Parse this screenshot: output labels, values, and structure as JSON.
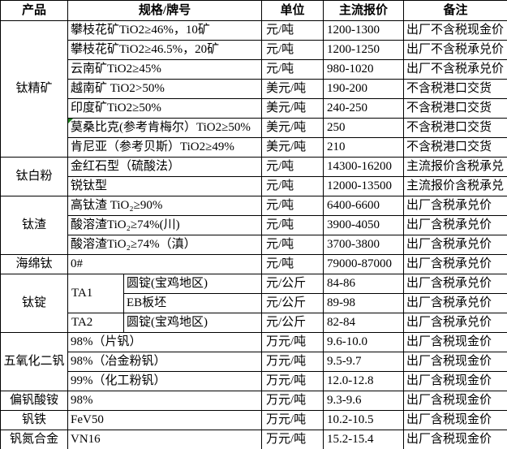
{
  "colors": {
    "border": "#000000",
    "background": "#ffffff",
    "text": "#000000",
    "marker_green": "#1e7e1e"
  },
  "table": {
    "headers": [
      {
        "id": "product",
        "t": "产品"
      },
      {
        "id": "spec",
        "t": "规格/牌号",
        "cs": 2
      },
      {
        "id": "unit",
        "t": "单位"
      },
      {
        "id": "price",
        "t": "主流报价"
      },
      {
        "id": "note",
        "t": "备注"
      }
    ],
    "rows": [
      [
        {
          "kind": "product",
          "t": "钛精矿",
          "rs": 7
        },
        {
          "kind": "spec",
          "t": "攀枝花矿TiO2≥46%，10矿",
          "cs": 2
        },
        {
          "kind": "unit",
          "t": "元/吨"
        },
        {
          "kind": "price",
          "t": "1200-1300"
        },
        {
          "kind": "note",
          "t": "出厂不含税现金价"
        }
      ],
      [
        {
          "kind": "spec",
          "t": "攀枝花矿TiO2≥46.5%，20矿",
          "cs": 2
        },
        {
          "kind": "unit",
          "t": "元/吨"
        },
        {
          "kind": "price",
          "t": "1200-1250"
        },
        {
          "kind": "note",
          "t": "出厂不含税承兑价"
        }
      ],
      [
        {
          "kind": "spec",
          "t": "云南矿TiO2≥45%",
          "cs": 2
        },
        {
          "kind": "unit",
          "t": "元/吨"
        },
        {
          "kind": "price",
          "t": "980-1020"
        },
        {
          "kind": "note",
          "t": "出厂不含税承兑价"
        }
      ],
      [
        {
          "kind": "spec",
          "t": "越南矿 TiO2>50%",
          "cs": 2
        },
        {
          "kind": "unit",
          "t": "美元/吨"
        },
        {
          "kind": "price",
          "t": "190-200"
        },
        {
          "kind": "note",
          "t": "不含税港口交货"
        }
      ],
      [
        {
          "kind": "spec",
          "t": "印度矿TiO2≥50%",
          "cs": 2
        },
        {
          "kind": "unit",
          "t": "美元/吨"
        },
        {
          "kind": "price",
          "t": "240-250"
        },
        {
          "kind": "note",
          "t": "不含税港口交货"
        }
      ],
      [
        {
          "kind": "spec",
          "t": "莫桑比克(参考肯梅尔）TiO2≥50%",
          "cs": 2,
          "marker": true
        },
        {
          "kind": "unit",
          "t": "美元/吨"
        },
        {
          "kind": "price",
          "t": "250"
        },
        {
          "kind": "note",
          "t": "不含税港口交货"
        }
      ],
      [
        {
          "kind": "spec",
          "t": "肯尼亚（参考贝斯）TiO2≥49%",
          "cs": 2
        },
        {
          "kind": "unit",
          "t": "美元/吨"
        },
        {
          "kind": "price",
          "t": "210"
        },
        {
          "kind": "note",
          "t": "不含税港口交货"
        }
      ],
      [
        {
          "kind": "product",
          "t": "钛白粉",
          "rs": 2
        },
        {
          "kind": "spec",
          "t": "金红石型（硫酸法）",
          "cs": 2
        },
        {
          "kind": "unit",
          "t": "元/吨"
        },
        {
          "kind": "price",
          "t": "14300-16200"
        },
        {
          "kind": "note",
          "t": "主流报价含税承兑"
        }
      ],
      [
        {
          "kind": "spec",
          "t": "锐钛型",
          "cs": 2
        },
        {
          "kind": "unit",
          "t": "元/吨"
        },
        {
          "kind": "price",
          "t": "12000-13500"
        },
        {
          "kind": "note",
          "t": "主流报价含税承兑"
        }
      ],
      [
        {
          "kind": "product",
          "t": "钛渣",
          "rs": 3
        },
        {
          "kind": "spec",
          "t": "高钛渣 TiO₂≥90%",
          "cs": 2
        },
        {
          "kind": "unit",
          "t": "元/吨"
        },
        {
          "kind": "price",
          "t": "6400-6600"
        },
        {
          "kind": "note",
          "t": "出厂含税承兑价"
        }
      ],
      [
        {
          "kind": "spec",
          "t": "酸溶渣TiO₂≥74%(川)",
          "cs": 2
        },
        {
          "kind": "unit",
          "t": "元/吨"
        },
        {
          "kind": "price",
          "t": "3900-4050"
        },
        {
          "kind": "note",
          "t": "出厂含税承兑价"
        }
      ],
      [
        {
          "kind": "spec",
          "t": "酸溶渣TiO₂≥74%（滇）",
          "cs": 2
        },
        {
          "kind": "unit",
          "t": "元/吨"
        },
        {
          "kind": "price",
          "t": "3700-3800"
        },
        {
          "kind": "note",
          "t": "出厂含税承兑价"
        }
      ],
      [
        {
          "kind": "product",
          "t": "海绵钛"
        },
        {
          "kind": "spec",
          "t": "0#",
          "cs": 2
        },
        {
          "kind": "unit",
          "t": "元/吨"
        },
        {
          "kind": "price",
          "t": "79000-87000"
        },
        {
          "kind": "note",
          "t": "出厂含税承兑价"
        }
      ],
      [
        {
          "kind": "product",
          "t": "钛锭",
          "rs": 3
        },
        {
          "kind": "ta",
          "t": "TA1",
          "rs": 2
        },
        {
          "kind": "spec",
          "t": "圆锭(宝鸡地区)"
        },
        {
          "kind": "unit",
          "t": "元/公斤"
        },
        {
          "kind": "price",
          "t": "84-86"
        },
        {
          "kind": "note",
          "t": "出厂含税承兑价"
        }
      ],
      [
        {
          "kind": "spec",
          "t": "EB板坯"
        },
        {
          "kind": "unit",
          "t": "元/公斤"
        },
        {
          "kind": "price",
          "t": "89-98"
        },
        {
          "kind": "note",
          "t": "出厂含税承兑价"
        }
      ],
      [
        {
          "kind": "ta",
          "t": "TA2"
        },
        {
          "kind": "spec",
          "t": "圆锭(宝鸡地区)"
        },
        {
          "kind": "unit",
          "t": "元/公斤"
        },
        {
          "kind": "price",
          "t": "82-84"
        },
        {
          "kind": "note",
          "t": "出厂含税承兑价"
        }
      ],
      [
        {
          "kind": "product",
          "t": "五氧化二钒",
          "rs": 3
        },
        {
          "kind": "spec",
          "t": "98%（片钒）",
          "cs": 2
        },
        {
          "kind": "unit",
          "t": "万元/吨"
        },
        {
          "kind": "price",
          "t": "9.6-10.0"
        },
        {
          "kind": "note",
          "t": "出厂含税现金价"
        }
      ],
      [
        {
          "kind": "spec",
          "t": "98%（冶金粉钒）",
          "cs": 2
        },
        {
          "kind": "unit",
          "t": "万元/吨"
        },
        {
          "kind": "price",
          "t": "9.5-9.7"
        },
        {
          "kind": "note",
          "t": "出厂含税现金价"
        }
      ],
      [
        {
          "kind": "spec",
          "t": "99%（化工粉钒）",
          "cs": 2
        },
        {
          "kind": "unit",
          "t": "万元/吨"
        },
        {
          "kind": "price",
          "t": "12.0-12.8"
        },
        {
          "kind": "note",
          "t": "出厂含税现金价"
        }
      ],
      [
        {
          "kind": "product",
          "t": "偏钒酸铵"
        },
        {
          "kind": "spec",
          "t": "98%",
          "cs": 2
        },
        {
          "kind": "unit",
          "t": "万元/吨"
        },
        {
          "kind": "price",
          "t": "9.3-9.6"
        },
        {
          "kind": "note",
          "t": "出厂含税现金价"
        }
      ],
      [
        {
          "kind": "product",
          "t": "钒铁"
        },
        {
          "kind": "spec",
          "t": "FeV50",
          "cs": 2
        },
        {
          "kind": "unit",
          "t": "万元/吨"
        },
        {
          "kind": "price",
          "t": "10.2-10.5"
        },
        {
          "kind": "note",
          "t": "出厂含税现金价"
        }
      ],
      [
        {
          "kind": "product",
          "t": "钒氮合金"
        },
        {
          "kind": "spec",
          "t": "VN16",
          "cs": 2
        },
        {
          "kind": "unit",
          "t": "万元/吨"
        },
        {
          "kind": "price",
          "t": "15.2-15.4"
        },
        {
          "kind": "note",
          "t": "出厂含税现金价"
        }
      ]
    ]
  }
}
